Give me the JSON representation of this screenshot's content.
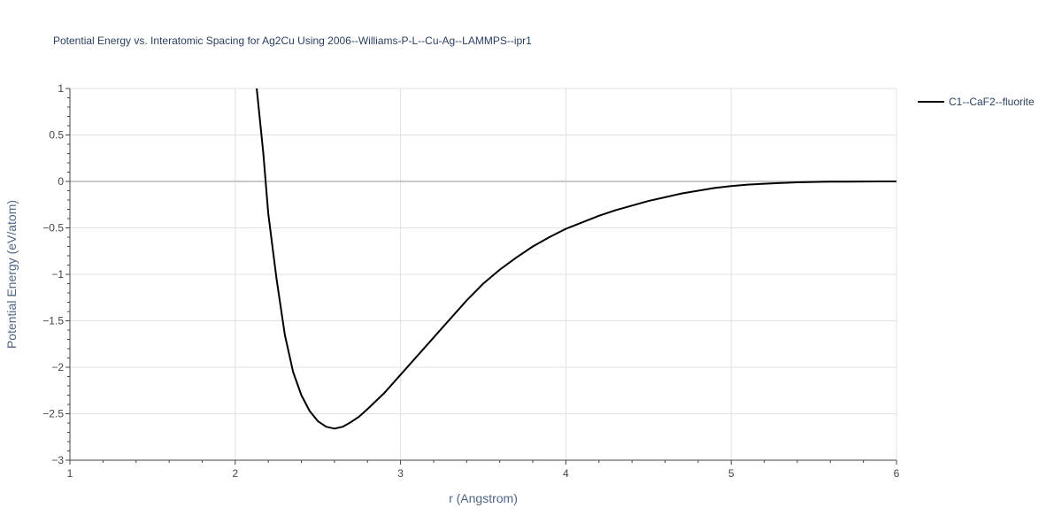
{
  "chart_data": {
    "type": "line",
    "title": "Potential Energy vs. Interatomic Spacing for Ag2Cu Using 2006--Williams-P-L--Cu-Ag--LAMMPS--ipr1",
    "xlabel": "r (Angstrom)",
    "ylabel": "Potential Energy (eV/atom)",
    "xlim": [
      1,
      6
    ],
    "ylim": [
      -3,
      1
    ],
    "xticks": [
      "1",
      "2",
      "3",
      "4",
      "5",
      "6"
    ],
    "yticks": [
      "−3",
      "−2.5",
      "−2",
      "−1.5",
      "−1",
      "−0.5",
      "0",
      "0.5",
      "1"
    ],
    "grid": true,
    "legend_position": "top-right",
    "series": [
      {
        "name": "C1--CaF2--fluorite",
        "color": "#000000",
        "x": [
          2.13,
          2.15,
          2.17,
          2.2,
          2.25,
          2.3,
          2.35,
          2.4,
          2.45,
          2.5,
          2.55,
          2.6,
          2.65,
          2.7,
          2.75,
          2.8,
          2.9,
          3.0,
          3.1,
          3.2,
          3.3,
          3.4,
          3.5,
          3.6,
          3.7,
          3.8,
          3.9,
          4.0,
          4.1,
          4.2,
          4.3,
          4.4,
          4.5,
          4.6,
          4.7,
          4.8,
          4.9,
          5.0,
          5.1,
          5.2,
          5.3,
          5.4,
          5.5,
          5.6,
          5.7,
          5.8,
          5.9,
          6.0
        ],
        "y": [
          1.0,
          0.65,
          0.3,
          -0.35,
          -1.05,
          -1.65,
          -2.05,
          -2.3,
          -2.47,
          -2.58,
          -2.64,
          -2.66,
          -2.64,
          -2.59,
          -2.53,
          -2.45,
          -2.28,
          -2.08,
          -1.88,
          -1.68,
          -1.48,
          -1.28,
          -1.1,
          -0.95,
          -0.82,
          -0.7,
          -0.6,
          -0.51,
          -0.44,
          -0.37,
          -0.31,
          -0.26,
          -0.21,
          -0.17,
          -0.13,
          -0.1,
          -0.07,
          -0.05,
          -0.035,
          -0.025,
          -0.017,
          -0.01,
          -0.006,
          -0.003,
          -0.002,
          -0.001,
          0.0,
          0.0
        ]
      }
    ]
  }
}
